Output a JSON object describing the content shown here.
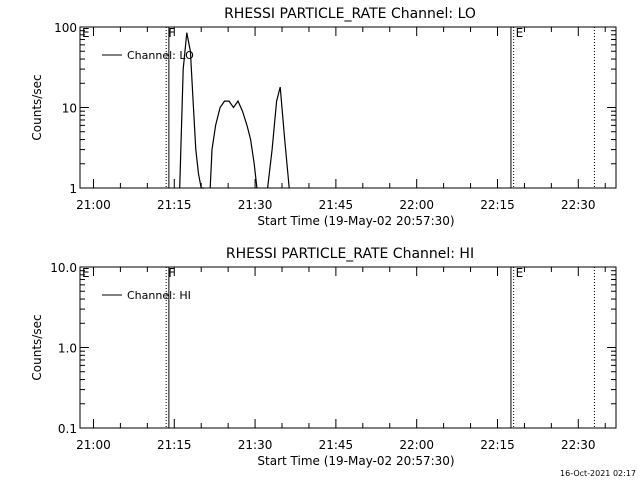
{
  "footer": {
    "timestamp": "16-Oct-2021 02:17"
  },
  "chart_data": [
    {
      "type": "line",
      "title": "RHESSI PARTICLE_RATE Channel: LO",
      "xlabel": "Start Time (19-May-02 20:57:30)",
      "ylabel": "Counts/sec",
      "y_scale": "log",
      "ylim": [
        1,
        100
      ],
      "xlim": [
        "20:57:30",
        "22:37:00"
      ],
      "x_ticks": [
        "21:00",
        "21:15",
        "21:30",
        "21:45",
        "22:00",
        "22:15",
        "22:30"
      ],
      "y_ticks": [
        "1",
        "10",
        "100"
      ],
      "grid": false,
      "legend": {
        "placement": "top-left",
        "entries": [
          "Channel: LO"
        ]
      },
      "markers": [
        {
          "label": "E",
          "time": "20:57:30",
          "style": "dotted"
        },
        {
          "label": "F",
          "time": "21:13:30",
          "style": "dotted"
        },
        {
          "label": "",
          "time": "21:14:00",
          "style": "solid"
        },
        {
          "label": "E",
          "time": "22:18:00",
          "style": "dotted"
        },
        {
          "label": "",
          "time": "22:17:30",
          "style": "solid"
        },
        {
          "label": "",
          "time": "22:33:00",
          "style": "dotted"
        }
      ],
      "series": [
        {
          "name": "Channel: LO",
          "x": [
            "21:16:00",
            "21:16:40",
            "21:17:20",
            "21:18:00",
            "21:18:30",
            "21:19:00",
            "21:19:30",
            "21:20:00",
            "21:20:30",
            "21:21:40",
            "21:22:00",
            "21:22:40",
            "21:23:30",
            "21:24:20",
            "21:25:10",
            "21:26:00",
            "21:26:50",
            "21:27:40",
            "21:28:30",
            "21:29:10",
            "21:29:50",
            "21:30:20",
            "21:32:20",
            "21:33:10",
            "21:34:00",
            "21:34:40",
            "21:35:30",
            "21:36:20"
          ],
          "y": [
            1,
            30,
            85,
            50,
            12,
            3,
            1.5,
            1,
            1,
            1,
            3,
            6,
            10,
            12,
            12,
            10,
            12,
            9,
            6,
            4,
            2,
            1,
            1,
            3,
            12,
            18,
            4,
            1
          ]
        }
      ]
    },
    {
      "type": "line",
      "title": "RHESSI PARTICLE_RATE Channel: HI",
      "xlabel": "Start Time (19-May-02 20:57:30)",
      "ylabel": "Counts/sec",
      "y_scale": "log",
      "ylim": [
        0.1,
        10.0
      ],
      "xlim": [
        "20:57:30",
        "22:37:00"
      ],
      "x_ticks": [
        "21:00",
        "21:15",
        "21:30",
        "21:45",
        "22:00",
        "22:15",
        "22:30"
      ],
      "y_ticks": [
        "0.1",
        "1.0",
        "10.0"
      ],
      "grid": false,
      "legend": {
        "placement": "top-left",
        "entries": [
          "Channel: HI"
        ]
      },
      "markers": [
        {
          "label": "E",
          "time": "20:57:30",
          "style": "dotted"
        },
        {
          "label": "F",
          "time": "21:13:30",
          "style": "dotted"
        },
        {
          "label": "",
          "time": "21:14:00",
          "style": "solid"
        },
        {
          "label": "E",
          "time": "22:18:00",
          "style": "dotted"
        },
        {
          "label": "",
          "time": "22:17:30",
          "style": "solid"
        },
        {
          "label": "",
          "time": "22:33:00",
          "style": "dotted"
        }
      ],
      "series": [
        {
          "name": "Channel: HI",
          "x": [],
          "y": []
        }
      ]
    }
  ]
}
